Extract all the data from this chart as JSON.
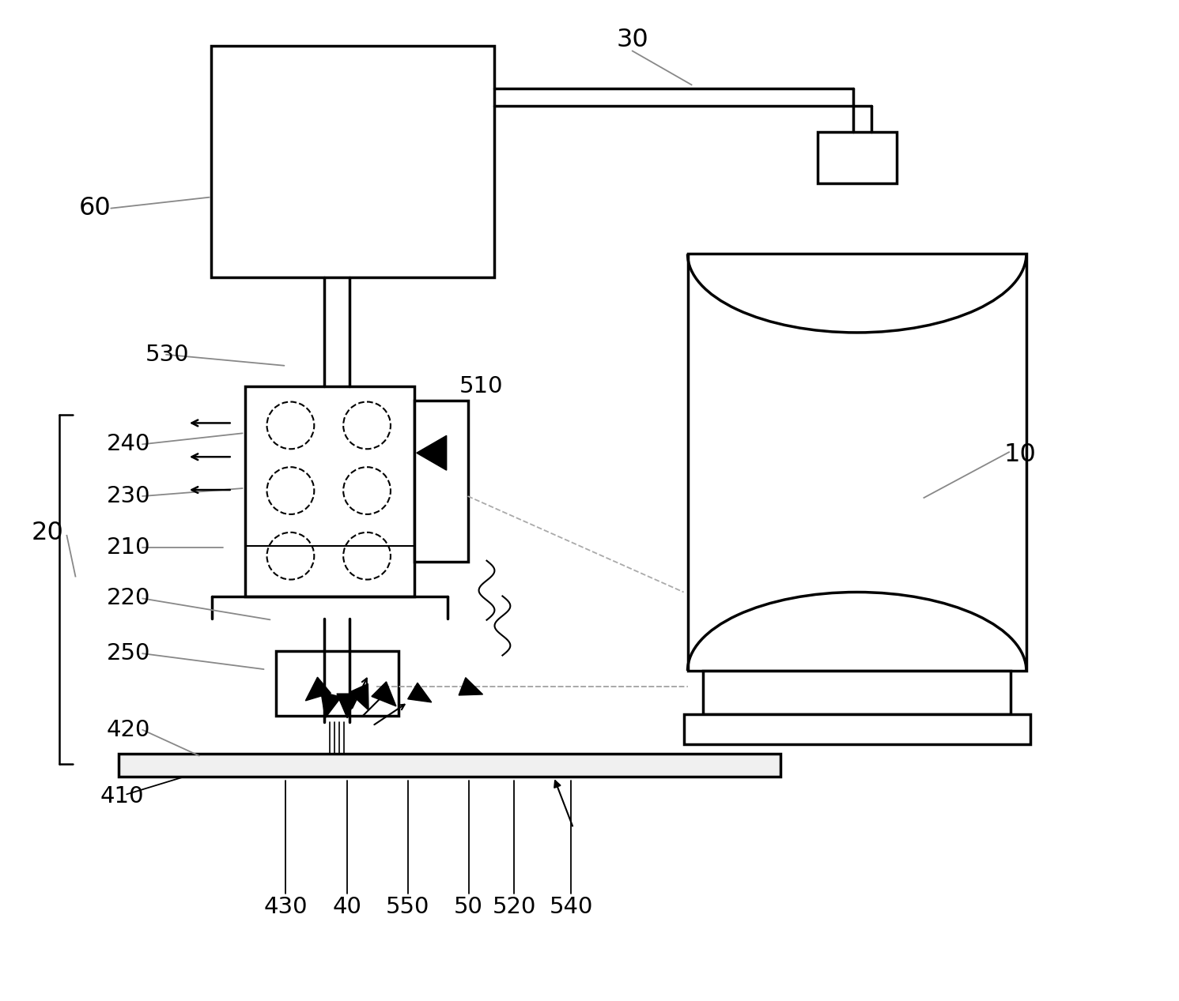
{
  "bg_color": "#ffffff",
  "line_color": "#000000",
  "gray_color": "#888888",
  "dashed_color": "#aaaaaa",
  "figsize": [
    14.91,
    12.67
  ],
  "dpi": 100
}
